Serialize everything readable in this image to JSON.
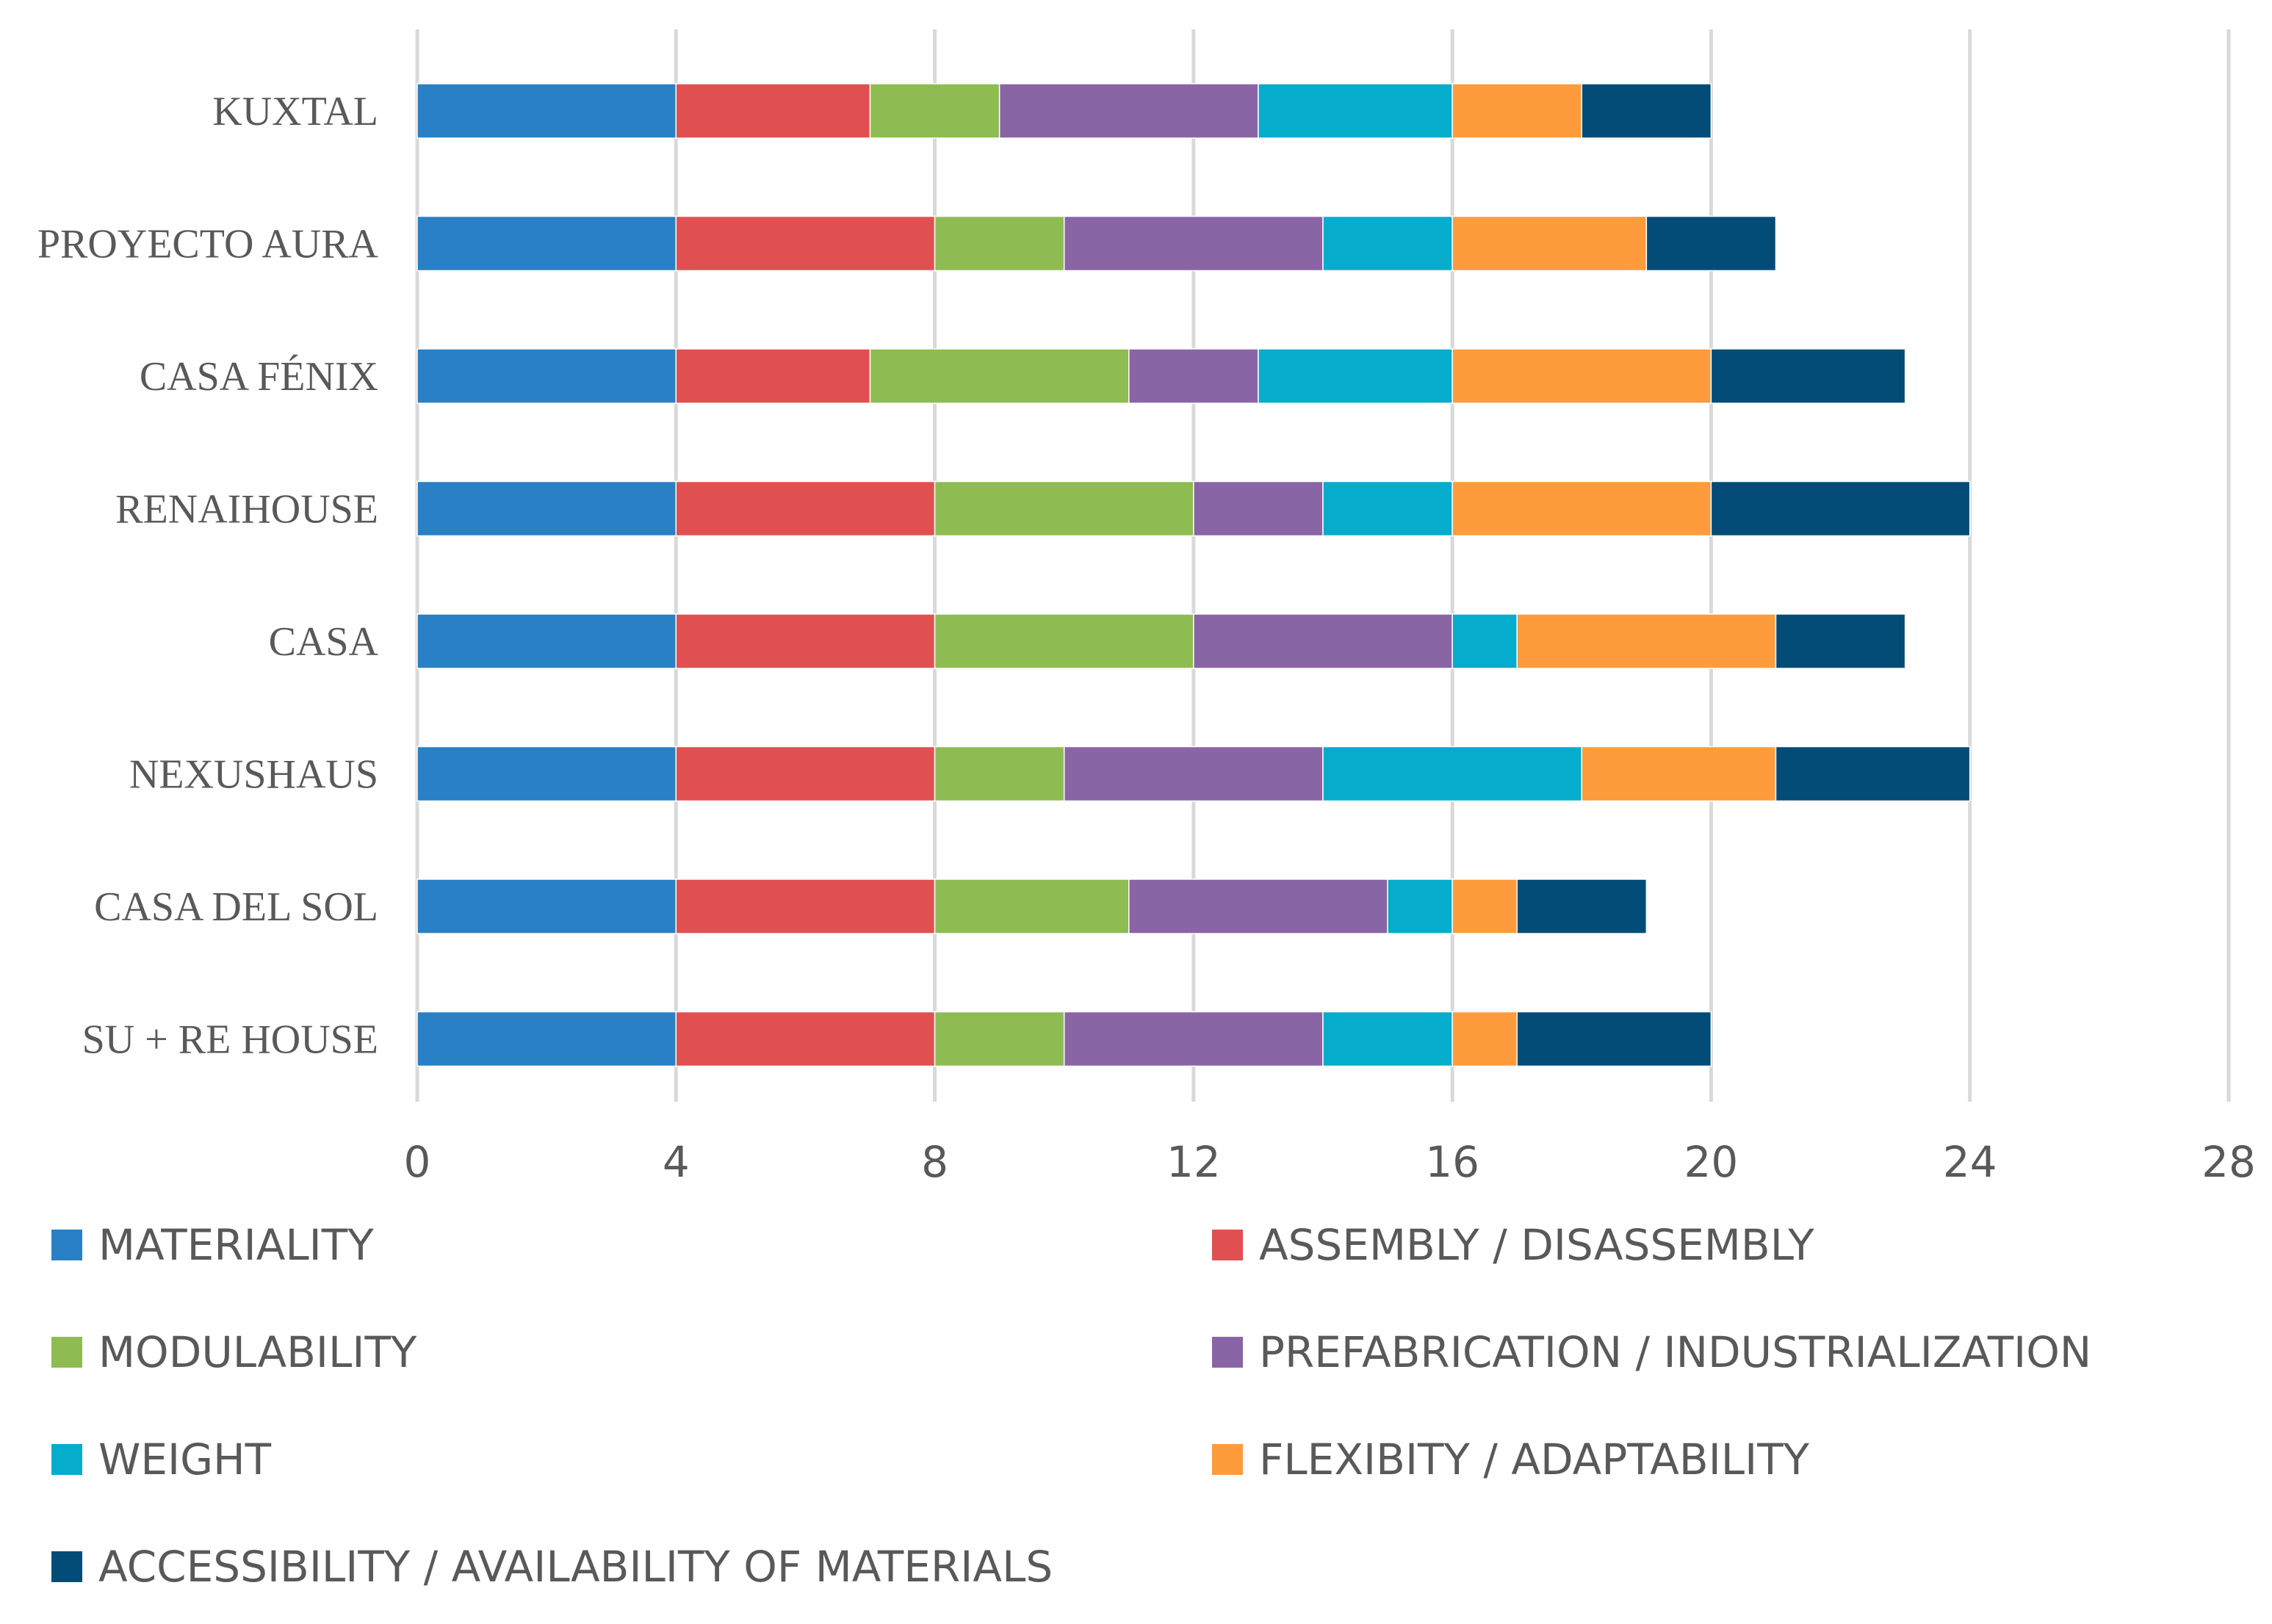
{
  "chart_data": {
    "type": "bar",
    "orientation": "horizontal",
    "stacked": true,
    "title": "",
    "xlabel": "",
    "ylabel": "",
    "xlim": [
      0,
      28
    ],
    "ticks": [
      0,
      4,
      8,
      12,
      16,
      20,
      24,
      28
    ],
    "grid": true,
    "legend_position": "bottom",
    "categories": [
      "KUXTAL",
      "PROYECTO AURA",
      "CASA FÉNIX",
      "RENAIHOUSE",
      "CASA ",
      "NEXUSHAUS",
      "CASA DEL SOL",
      "SU + RE HOUSE"
    ],
    "series": [
      {
        "name": "MATERIALITY",
        "color": "#2980c4",
        "values": [
          4,
          4,
          4,
          4,
          4,
          4,
          4,
          4
        ]
      },
      {
        "name": "ASSEMBLY / DISASSEMBLY",
        "color": "#e15050",
        "values": [
          3,
          4,
          3,
          4,
          4,
          4,
          4,
          4
        ]
      },
      {
        "name": "MODULABILITY",
        "color": "#8fbc52",
        "values": [
          2,
          2,
          4,
          4,
          4,
          2,
          3,
          2
        ]
      },
      {
        "name": "PREFABRICATION / INDUSTRIALIZATION",
        "color": "#8a65a6",
        "values": [
          4,
          4,
          2,
          2,
          4,
          4,
          4,
          4
        ]
      },
      {
        "name": "WEIGHT",
        "color": "#06accb",
        "values": [
          3,
          2,
          3,
          2,
          1,
          4,
          1,
          2
        ]
      },
      {
        "name": "FLEXIBITY / ADAPTABILITY",
        "color": "#fd9b3d",
        "values": [
          2,
          3,
          4,
          4,
          4,
          3,
          1,
          1
        ]
      },
      {
        "name": "ACCESSIBILITY / AVAILABILITY OF MATERIALS",
        "color": "#034c78",
        "values": [
          2,
          2,
          3,
          4,
          2,
          3,
          2,
          3
        ]
      }
    ]
  }
}
